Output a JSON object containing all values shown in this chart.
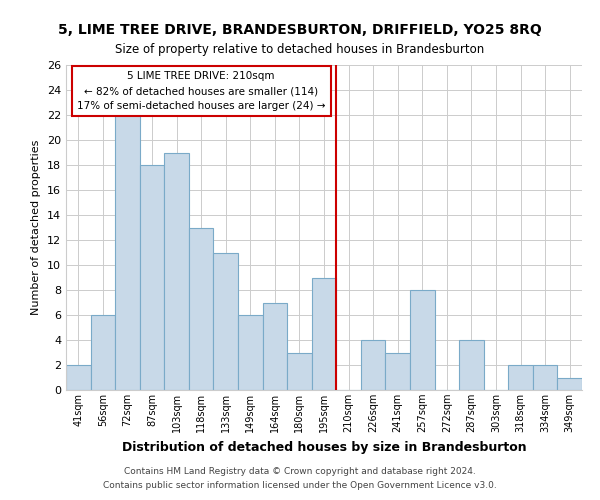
{
  "title": "5, LIME TREE DRIVE, BRANDESBURTON, DRIFFIELD, YO25 8RQ",
  "subtitle": "Size of property relative to detached houses in Brandesburton",
  "xlabel": "Distribution of detached houses by size in Brandesburton",
  "ylabel": "Number of detached properties",
  "bar_labels": [
    "41sqm",
    "56sqm",
    "72sqm",
    "87sqm",
    "103sqm",
    "118sqm",
    "133sqm",
    "149sqm",
    "164sqm",
    "180sqm",
    "195sqm",
    "210sqm",
    "226sqm",
    "241sqm",
    "257sqm",
    "272sqm",
    "287sqm",
    "303sqm",
    "318sqm",
    "334sqm",
    "349sqm"
  ],
  "bar_values": [
    2,
    6,
    22,
    18,
    19,
    13,
    11,
    6,
    7,
    3,
    9,
    0,
    4,
    3,
    8,
    0,
    4,
    0,
    2,
    2,
    1
  ],
  "bar_color": "#c8d9e8",
  "bar_edgecolor": "#7aaac8",
  "ylim": [
    0,
    26
  ],
  "yticks": [
    0,
    2,
    4,
    6,
    8,
    10,
    12,
    14,
    16,
    18,
    20,
    22,
    24,
    26
  ],
  "vline_color": "#cc0000",
  "annotation_title": "5 LIME TREE DRIVE: 210sqm",
  "annotation_line1": "← 82% of detached houses are smaller (114)",
  "annotation_line2": "17% of semi-detached houses are larger (24) →",
  "annotation_box_color": "#ffffff",
  "annotation_box_edgecolor": "#cc0000",
  "footer_line1": "Contains HM Land Registry data © Crown copyright and database right 2024.",
  "footer_line2": "Contains public sector information licensed under the Open Government Licence v3.0.",
  "background_color": "#ffffff",
  "grid_color": "#cccccc"
}
